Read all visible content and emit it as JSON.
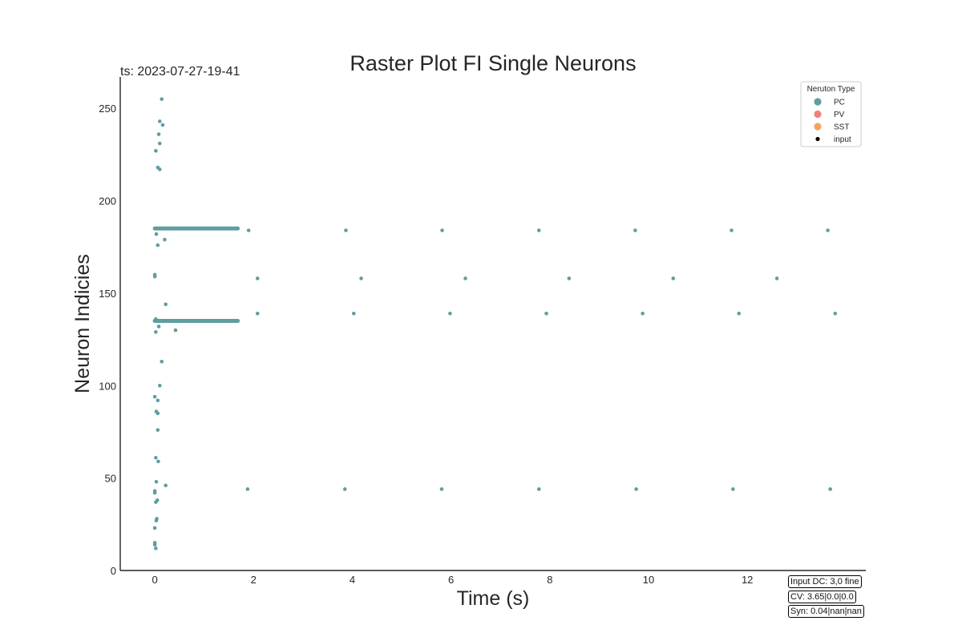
{
  "chart_data": {
    "type": "scatter",
    "title": "Raster Plot FI Single Neurons",
    "subtitle": "ts: 2023-07-27-19-41",
    "xlabel": "Time (s)",
    "ylabel": "Neuron Indicies",
    "xlim": [
      -0.7,
      14.4
    ],
    "ylim": [
      0,
      267
    ],
    "xticks": [
      0,
      2,
      4,
      6,
      8,
      10,
      12
    ],
    "yticks": [
      0,
      50,
      100,
      150,
      200,
      250
    ],
    "grid": false,
    "legend": {
      "title": "Neruton Type",
      "placement": "top-right",
      "entries": [
        {
          "label": "PC",
          "color": "#5f9ea0"
        },
        {
          "label": "PV",
          "color": "#f08080"
        },
        {
          "label": "SST",
          "color": "#f4a460"
        },
        {
          "label": "input",
          "color": "#000000"
        }
      ]
    },
    "series": [
      {
        "name": "PC",
        "color": "#5f9ea0",
        "points": [
          [
            0.14,
            255
          ],
          [
            0.1,
            243
          ],
          [
            0.16,
            241
          ],
          [
            0.08,
            236
          ],
          [
            0.1,
            231
          ],
          [
            0.02,
            227
          ],
          [
            0.06,
            218
          ],
          [
            0.1,
            217
          ],
          [
            0.03,
            182
          ],
          [
            0.2,
            179
          ],
          [
            0.06,
            176
          ],
          [
            0.0,
            160
          ],
          [
            0.0,
            159
          ],
          [
            0.22,
            144
          ],
          [
            0.02,
            136
          ],
          [
            0.0,
            135
          ],
          [
            0.08,
            132
          ],
          [
            0.42,
            130
          ],
          [
            0.02,
            129
          ],
          [
            0.14,
            113
          ],
          [
            0.1,
            100
          ],
          [
            0.0,
            94
          ],
          [
            0.06,
            92
          ],
          [
            0.03,
            86
          ],
          [
            0.06,
            85
          ],
          [
            0.06,
            76
          ],
          [
            0.02,
            61
          ],
          [
            0.07,
            59
          ],
          [
            0.03,
            48
          ],
          [
            0.22,
            46
          ],
          [
            0.0,
            43
          ],
          [
            0.0,
            42
          ],
          [
            0.05,
            38
          ],
          [
            0.02,
            37
          ],
          [
            0.04,
            28
          ],
          [
            0.03,
            27
          ],
          [
            0.0,
            23
          ],
          [
            0.0,
            15
          ],
          [
            0.0,
            14
          ],
          [
            0.02,
            12
          ],
          [
            1.9,
            184
          ],
          [
            3.87,
            184
          ],
          [
            5.82,
            184
          ],
          [
            7.78,
            184
          ],
          [
            9.73,
            184
          ],
          [
            11.68,
            184
          ],
          [
            13.63,
            184
          ],
          [
            2.08,
            158
          ],
          [
            4.18,
            158
          ],
          [
            6.29,
            158
          ],
          [
            8.39,
            158
          ],
          [
            10.5,
            158
          ],
          [
            12.6,
            158
          ],
          [
            2.08,
            139
          ],
          [
            4.03,
            139
          ],
          [
            5.98,
            139
          ],
          [
            7.93,
            139
          ],
          [
            9.88,
            139
          ],
          [
            11.83,
            139
          ],
          [
            13.78,
            139
          ],
          [
            1.88,
            44
          ],
          [
            3.85,
            44
          ],
          [
            5.81,
            44
          ],
          [
            7.78,
            44
          ],
          [
            9.75,
            44
          ],
          [
            11.71,
            44
          ],
          [
            13.68,
            44
          ]
        ],
        "bursts": [
          {
            "neuron": 185,
            "t_start": 0.0,
            "t_end": 1.68
          },
          {
            "neuron": 135,
            "t_start": 0.0,
            "t_end": 1.68
          }
        ]
      }
    ],
    "annotations": [
      "Input DC: 3,0 fine",
      "CV: 3.65|0.0|0.0",
      "Syn: 0.04|nan|nan"
    ]
  }
}
